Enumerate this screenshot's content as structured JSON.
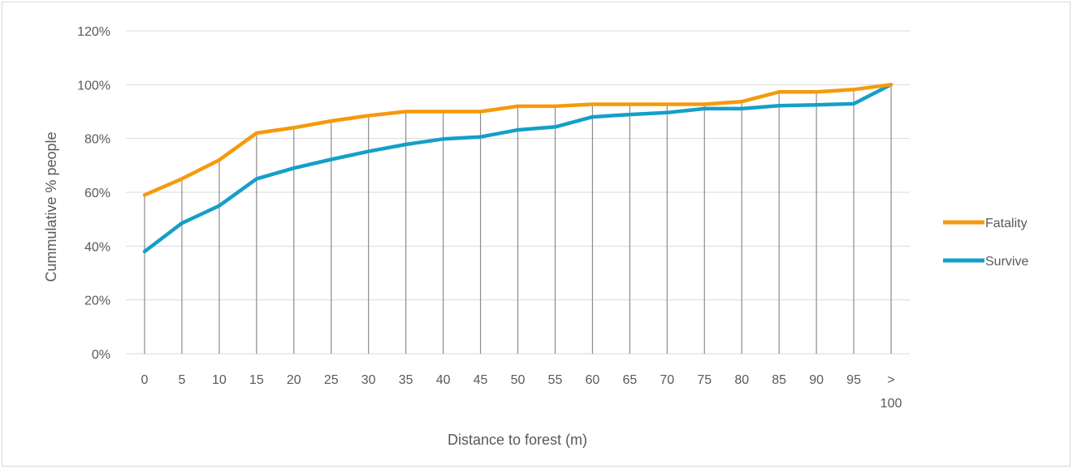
{
  "chart_data": {
    "type": "line",
    "title": "",
    "xlabel": "Distance to forest (m)",
    "ylabel": "Cummulative % people",
    "categories": [
      "0",
      "5",
      "10",
      "15",
      "20",
      "25",
      "30",
      "35",
      "40",
      "45",
      "50",
      "55",
      "60",
      "65",
      "70",
      "75",
      "80",
      "85",
      "90",
      "95",
      "> 100"
    ],
    "ylim": [
      0,
      120
    ],
    "yticks": [
      "0%",
      "20%",
      "40%",
      "60%",
      "80%",
      "100%",
      "120%"
    ],
    "grid": "horizontal gridlines, vertical drop lines",
    "legend": "right",
    "series": [
      {
        "name": "Fatality",
        "color": "#f59a0c",
        "values": [
          59,
          65,
          72,
          82,
          84,
          86.5,
          88.5,
          90,
          90,
          90,
          92,
          92,
          92.7,
          92.7,
          92.7,
          92.7,
          93.7,
          97.3,
          97.3,
          98.2,
          100
        ]
      },
      {
        "name": "Survive",
        "color": "#149fc8",
        "values": [
          38,
          48.5,
          55,
          65,
          69,
          72.2,
          75.2,
          77.8,
          79.8,
          80.6,
          83.2,
          84.3,
          88,
          88.9,
          89.6,
          91.1,
          91.1,
          92.2,
          92.5,
          92.9,
          100
        ]
      }
    ]
  }
}
